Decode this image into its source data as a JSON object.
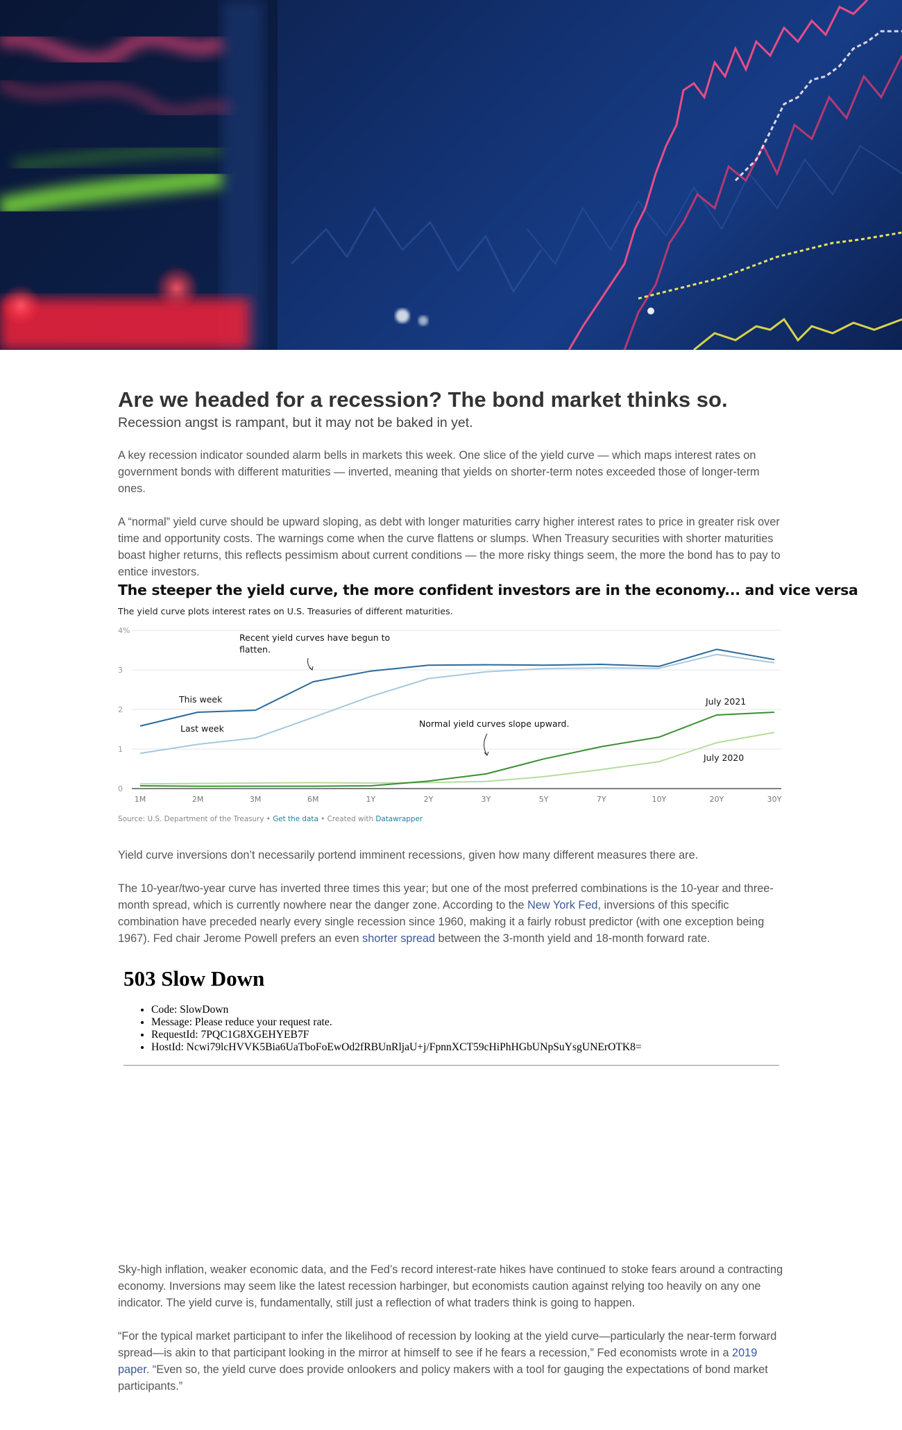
{
  "hero_image": {
    "description_icon": "stock-chart-photo"
  },
  "article": {
    "headline": "Are we headed for a recession? The bond market thinks so.",
    "dek": "Recession angst is rampant, but it may not be baked in yet.",
    "para1": "A key recession indicator sounded alarm bells in markets this week. One slice of the yield curve — which maps interest rates on government bonds with different maturities — inverted, meaning that yields on shorter-term notes exceeded those of longer-term ones.",
    "para2": "A “normal” yield curve should be upward sloping, as debt with longer maturities carry higher interest rates to price in greater risk over time and opportunity costs. The warnings come when the curve flattens or slumps. When Treasury securities with shorter maturities boast higher returns, this reflects pessimism about current conditions — the more risky things seem, the more the bond has to pay to entice investors.",
    "para3": "Yield curve inversions don’t necessarily portend imminent recessions, given how many different measures there are.",
    "para4": {
      "t1": "The 10-year/two-year curve has inverted three times this year; but one of the most preferred combinations is the 10-year and three-month spread, which is currently nowhere near the danger zone. According to the ",
      "link1": "New York Fed",
      "t2": ", inversions of this specific combination have preceded nearly every single recession since 1960, making it a fairly robust predictor (with one exception being 1967). Fed chair Jerome Powell prefers an even ",
      "link2": "shorter spread",
      "t3": " between the 3-month yield and 18-month forward rate."
    },
    "para5": "Sky-high inflation, weaker economic data, and the Fed’s record interest-rate hikes have continued to stoke fears around a contracting economy. Inversions may seem like the latest recession harbinger, but economists caution against relying too heavily on any one indicator. The yield curve is, fundamentally, still just a reflection of what traders think is going to happen.",
    "para6": {
      "t1": "“For the typical market participant to infer the likelihood of recession by looking at the yield curve—particularly the near-term forward spread—is akin to that participant looking in the mirror at himself to see if he fears a recession,” Fed economists wrote in a ",
      "link": "2019 paper",
      "t2": ". “Even so, the yield curve does provide onlookers and policy makers with a tool for gauging the expectations of bond market participants.”"
    }
  },
  "chart_data": {
    "type": "line",
    "title": "The steeper the yield curve, the more confident investors are in the economy... and vice versa",
    "subtitle": "The yield curve plots interest rates on U.S. Treasuries of different maturities.",
    "categories": [
      "1M",
      "2M",
      "3M",
      "6M",
      "1Y",
      "2Y",
      "3Y",
      "5Y",
      "7Y",
      "10Y",
      "20Y",
      "30Y"
    ],
    "ylim": [
      0,
      4
    ],
    "yticks": [
      "0",
      "1",
      "2",
      "3",
      "4%"
    ],
    "grid": true,
    "series": [
      {
        "name": "This week",
        "color": "#2a6a99",
        "width": 2,
        "values": [
          1.58,
          1.93,
          1.98,
          2.7,
          2.97,
          3.12,
          3.13,
          3.12,
          3.14,
          3.09,
          3.52,
          3.26
        ]
      },
      {
        "name": "Last week",
        "color": "#a6c8df",
        "width": 2,
        "values": [
          0.89,
          1.12,
          1.28,
          1.8,
          2.33,
          2.78,
          2.95,
          3.03,
          3.05,
          3.04,
          3.39,
          3.18
        ]
      },
      {
        "name": "July 2021",
        "color": "#3a8f32",
        "width": 2,
        "values": [
          0.07,
          0.06,
          0.06,
          0.06,
          0.07,
          0.19,
          0.37,
          0.75,
          1.06,
          1.3,
          1.86,
          1.93
        ]
      },
      {
        "name": "July 2020",
        "color": "#b5dc9d",
        "width": 2,
        "values": [
          0.12,
          0.13,
          0.14,
          0.15,
          0.14,
          0.15,
          0.18,
          0.3,
          0.48,
          0.68,
          1.16,
          1.42
        ]
      }
    ],
    "labels": {
      "this_week": "This week",
      "last_week": "Last week",
      "july_2021": "July 2021",
      "july_2020": "July 2020",
      "annotation_flatten_line1": "Recent yield curves have begun to",
      "annotation_flatten_line2": "flatten.",
      "annotation_normal": "Normal yield curves slope upward."
    },
    "source": {
      "prefix": "Source: U.S. Department of the Treasury • ",
      "get_data": "Get the data",
      "mid": " • Created with ",
      "datawrapper": "Datawrapper"
    }
  },
  "error_block": {
    "title": "503 Slow Down",
    "items": [
      "Code: SlowDown",
      "Message: Please reduce your request rate.",
      "RequestId: 7PQC1G8XGEHYEB7F",
      "HostId: Ncwi79lcHVVK5Bia6UaTboFoEwOd2fRBUnRljaU+j/FpnnXCT59cHiPhHGbUNpSuYsgUNErOTK8="
    ]
  },
  "colors": {
    "link": "#3c5a9a",
    "datawrapper_link": "#1d81a2",
    "text": "#555555"
  }
}
